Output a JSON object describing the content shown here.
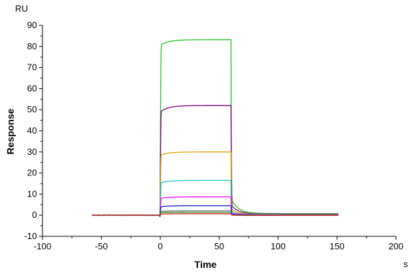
{
  "chart_data": {
    "type": "line",
    "xlabel": "Time",
    "ylabel": "Response",
    "x_unit": "s",
    "y_unit": "RU",
    "xlim": [
      -100,
      200
    ],
    "ylim": [
      -10,
      90
    ],
    "x_ticks": [
      -100,
      -50,
      0,
      50,
      100,
      150,
      200
    ],
    "y_ticks": [
      -10,
      0,
      10,
      20,
      30,
      40,
      50,
      60,
      70,
      80,
      90
    ],
    "x_tick_labels": [
      "-100",
      "-50",
      "0",
      "50",
      "100",
      "150",
      "200"
    ],
    "y_tick_labels": [
      "-10",
      "0",
      "10",
      "20",
      "30",
      "40",
      "50",
      "60",
      "70",
      "80",
      "90"
    ],
    "grid": false,
    "legend": "none",
    "association_start": 0,
    "dissociation_start": 60,
    "time_range": [
      -58,
      152
    ],
    "series": [
      {
        "color": "#1fc21f",
        "initial": 80.5,
        "plateau": 83.2,
        "tail": 0.8
      },
      {
        "color": "#800080",
        "initial": 49.0,
        "plateau": 52.0,
        "tail": 0.6
      },
      {
        "color": "#e0a000",
        "initial": 28.5,
        "plateau": 30.0,
        "tail": 0.5
      },
      {
        "color": "#12c8c8",
        "initial": 15.3,
        "plateau": 16.5,
        "tail": 0.4
      },
      {
        "color": "#ff00ff",
        "initial": 8.0,
        "plateau": 8.7,
        "tail": 0.3
      },
      {
        "color": "#1a1acc",
        "initial": 4.0,
        "plateau": 4.5,
        "tail": 0.2
      },
      {
        "color": "#707070",
        "initial": 1.8,
        "plateau": 2.1,
        "tail": 0.1
      },
      {
        "color": "#228b22",
        "initial": 1.2,
        "plateau": 1.4,
        "tail": 0.0
      },
      {
        "color": "#d02020",
        "initial": 0.5,
        "plateau": 0.7,
        "tail": -0.1
      }
    ]
  }
}
